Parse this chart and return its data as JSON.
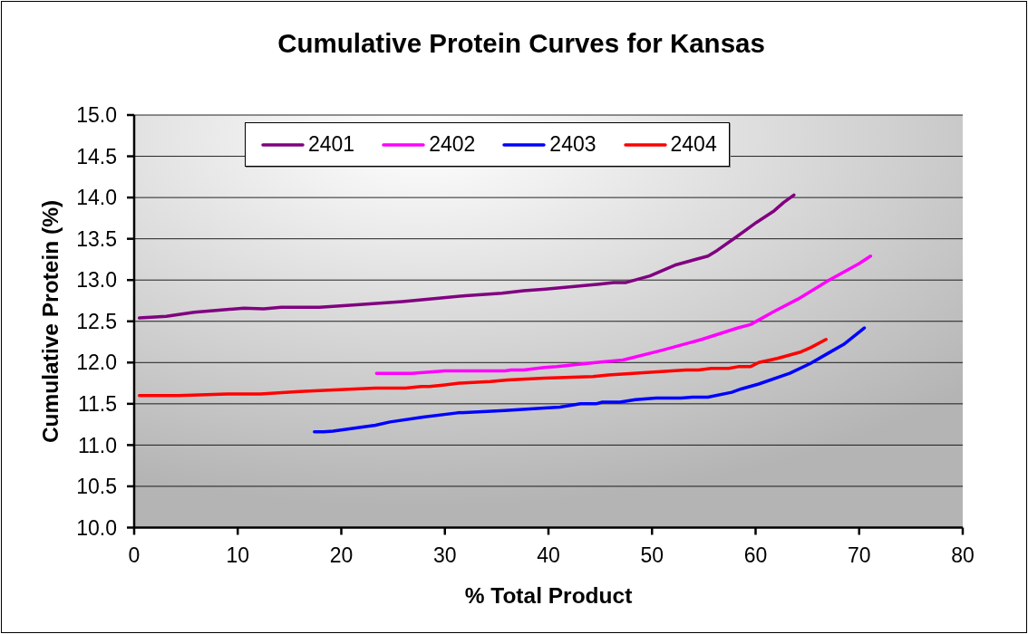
{
  "chart_data": {
    "type": "line",
    "title": "Cumulative Protein Curves for Kansas",
    "xlabel": "% Total Product",
    "ylabel": "Cumulative Protein (%)",
    "xlim": [
      0,
      80
    ],
    "xticks": [
      0,
      10,
      20,
      30,
      40,
      50,
      60,
      70,
      80
    ],
    "ylim": [
      10,
      15
    ],
    "yticks": [
      {
        "value": 10,
        "label": "10.0"
      },
      {
        "value": 10.5,
        "label": "10.5"
      },
      {
        "value": 11,
        "label": "11.0"
      },
      {
        "value": 11.5,
        "label": "11.5"
      },
      {
        "value": 12,
        "label": "12.0"
      },
      {
        "value": 12.5,
        "label": "12.5"
      },
      {
        "value": 13,
        "label": "13.0"
      },
      {
        "value": 13.5,
        "label": "13.5"
      },
      {
        "value": 14,
        "label": "14.0"
      },
      {
        "value": 14.5,
        "label": "14.5"
      },
      {
        "value": 15,
        "label": "15.0"
      }
    ],
    "grid": "y",
    "legend": "top",
    "series": [
      {
        "name": "2401",
        "color": "#800080",
        "x": [
          0.5,
          3.1,
          5.8,
          10.6,
          12.5,
          14.2,
          17.9,
          21.5,
          25.9,
          29.4,
          32.0,
          35.5,
          37.6,
          39.7,
          44.9,
          46.3,
          47.5,
          49.8,
          52.2,
          54.5,
          55.4,
          56.3,
          58.0,
          60.1,
          61.8,
          62.7,
          63.7
        ],
        "values": [
          12.54,
          12.56,
          12.61,
          12.66,
          12.65,
          12.67,
          12.67,
          12.7,
          12.74,
          12.78,
          12.81,
          12.84,
          12.87,
          12.89,
          12.95,
          12.97,
          12.97,
          13.05,
          13.18,
          13.26,
          13.29,
          13.36,
          13.51,
          13.7,
          13.84,
          13.94,
          14.03
        ]
      },
      {
        "name": "2402",
        "color": "#ff00ff",
        "x": [
          23.4,
          26.8,
          30.0,
          35.8,
          36.4,
          37.6,
          39.6,
          40.8,
          44.6,
          47.2,
          51.0,
          54.8,
          58.3,
          59.5,
          61.8,
          64.1,
          67.1,
          70.0,
          71.1
        ],
        "values": [
          11.87,
          11.87,
          11.9,
          11.9,
          11.91,
          11.91,
          11.94,
          11.95,
          12.0,
          12.03,
          12.15,
          12.28,
          12.42,
          12.46,
          12.62,
          12.77,
          13.0,
          13.2,
          13.29
        ]
      },
      {
        "name": "2403",
        "color": "#0000ff",
        "x": [
          17.4,
          18.3,
          19.2,
          23.3,
          24.7,
          27.9,
          31.2,
          35.8,
          39.6,
          41.1,
          43.1,
          44.6,
          45.2,
          46.9,
          48.4,
          50.4,
          52.8,
          53.9,
          55.4,
          57.7,
          58.6,
          60.3,
          63.3,
          65.3,
          67.1,
          68.5,
          70.5
        ],
        "values": [
          11.16,
          11.16,
          11.17,
          11.24,
          11.28,
          11.34,
          11.39,
          11.42,
          11.45,
          11.46,
          11.5,
          11.5,
          11.52,
          11.52,
          11.55,
          11.57,
          11.57,
          11.58,
          11.58,
          11.64,
          11.68,
          11.74,
          11.87,
          11.99,
          12.12,
          12.22,
          12.42
        ]
      },
      {
        "name": "2404",
        "color": "#ff0000",
        "x": [
          0.5,
          4.3,
          9.0,
          12.2,
          16.0,
          19.8,
          23.3,
          26.2,
          27.7,
          28.5,
          30.0,
          31.4,
          34.4,
          36.1,
          39.6,
          44.3,
          45.8,
          51.9,
          53.3,
          54.5,
          55.7,
          57.4,
          58.3,
          59.5,
          60.3,
          62.1,
          64.4,
          65.3,
          66.8
        ],
        "values": [
          11.6,
          11.6,
          11.62,
          11.62,
          11.65,
          11.67,
          11.69,
          11.69,
          11.71,
          11.71,
          11.73,
          11.75,
          11.77,
          11.79,
          11.81,
          11.83,
          11.85,
          11.9,
          11.91,
          11.91,
          11.93,
          11.93,
          11.95,
          11.95,
          12.0,
          12.05,
          12.13,
          12.18,
          12.28
        ]
      }
    ]
  }
}
